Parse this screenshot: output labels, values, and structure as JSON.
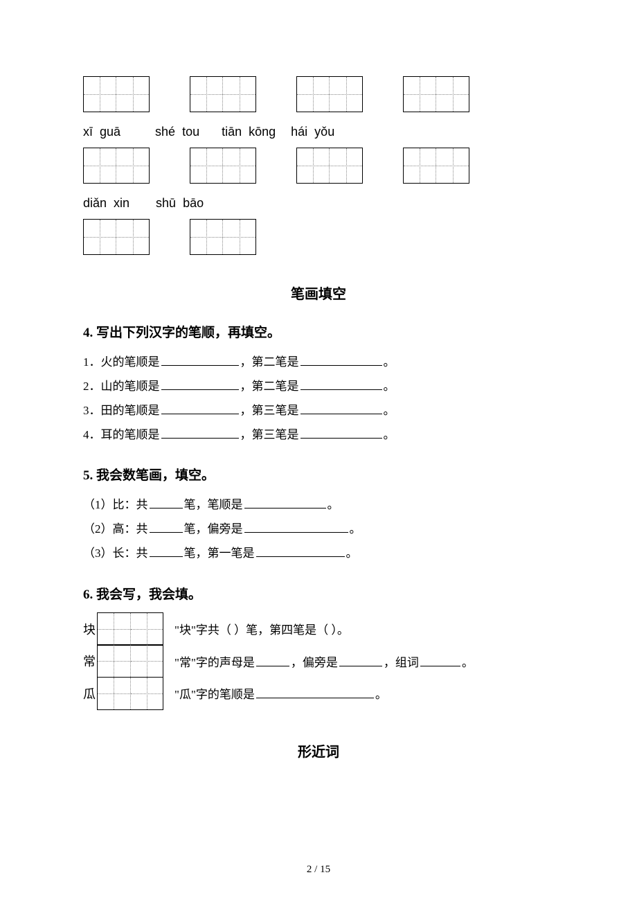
{
  "gridBox": {
    "cellW": 48,
    "cellH": 52,
    "cells": 2
  },
  "row1_boxes": 4,
  "pinyin1": [
    "xī  guā",
    "shé  tou",
    "tiān  kōng",
    "hái  yǒu"
  ],
  "row2_boxes": 4,
  "pinyin2": [
    "diǎn  xin",
    "shū  bāo"
  ],
  "row3_boxes": 2,
  "section1_title": "笔画填空",
  "q4": {
    "head": "4.  写出下列汉字的笔顺，再填空。",
    "items": [
      {
        "pre": "1．火的笔顺是",
        "mid": "，第二笔是",
        "end": "。"
      },
      {
        "pre": "2．山的笔顺是",
        "mid": "，第二笔是",
        "end": "。"
      },
      {
        "pre": "3．田的笔顺是",
        "mid": "，第三笔是",
        "end": "。"
      },
      {
        "pre": "4．耳的笔顺是",
        "mid": "，第三笔是",
        "end": "。"
      }
    ],
    "blank1_w": 112,
    "blank2_w": 118
  },
  "q5": {
    "head": "5.  我会数笔画，填空。",
    "items": [
      {
        "pre": "（1）比：共",
        "b1w": 48,
        "mid": "笔，笔顺是",
        "b2w": 118,
        "end": "。"
      },
      {
        "pre": "（2）高：共",
        "b1w": 48,
        "mid": "笔，偏旁是",
        "b2w": 150,
        "end": "。"
      },
      {
        "pre": "（3）长：共",
        "b1w": 48,
        "mid": "笔，第一笔是",
        "b2w": 128,
        "end": "。"
      }
    ]
  },
  "q6": {
    "head": "6.  我会写，我会填。",
    "rows": [
      {
        "ch": "块",
        "text_parts": [
          "\"块\"字共（     ）笔，第四笔是（    ）。"
        ]
      },
      {
        "ch": "常",
        "text_parts": [
          "\"常\"字的声母是",
          48,
          "，偏旁是",
          62,
          "，组词",
          58,
          "。"
        ]
      },
      {
        "ch": "瓜",
        "text_parts": [
          "\"瓜\"字的笔顺是",
          170,
          "。"
        ]
      }
    ]
  },
  "section2_title": "形近词",
  "pageNum": "2 / 15"
}
